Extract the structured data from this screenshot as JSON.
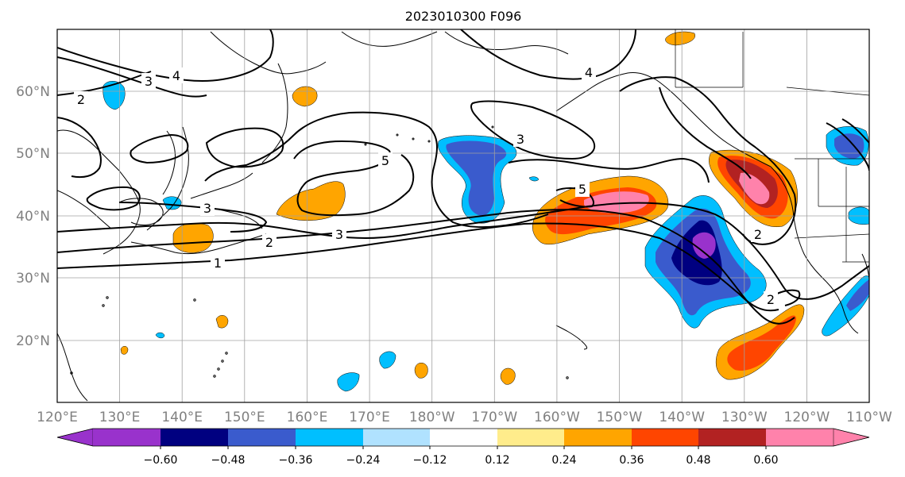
{
  "title": "2023010300 F096",
  "map": {
    "lon_labels": [
      "120°E",
      "130°E",
      "140°E",
      "150°E",
      "160°E",
      "170°E",
      "180°W",
      "170°W",
      "160°W",
      "150°W",
      "140°W",
      "130°W",
      "120°W",
      "110°W"
    ],
    "lat_labels": [
      "20°N",
      "30°N",
      "40°N",
      "50°N",
      "60°N"
    ],
    "contour_labels": [
      "1",
      "2",
      "2",
      "3",
      "3",
      "3",
      "4",
      "4",
      "5",
      "5",
      "2",
      "2",
      "3"
    ]
  },
  "colorbar": {
    "colors": [
      "#9932CC",
      "#000080",
      "#3A5BCD",
      "#00BFFF",
      "#B0E2FF",
      "#FFFFFF",
      "#FFEC8B",
      "#FFA500",
      "#FF4500",
      "#B22222",
      "#FF82AB"
    ],
    "tick_labels": [
      "−0.60",
      "−0.48",
      "−0.36",
      "−0.24",
      "−0.12",
      "0.12",
      "0.24",
      "0.36",
      "0.48",
      "0.60"
    ]
  }
}
